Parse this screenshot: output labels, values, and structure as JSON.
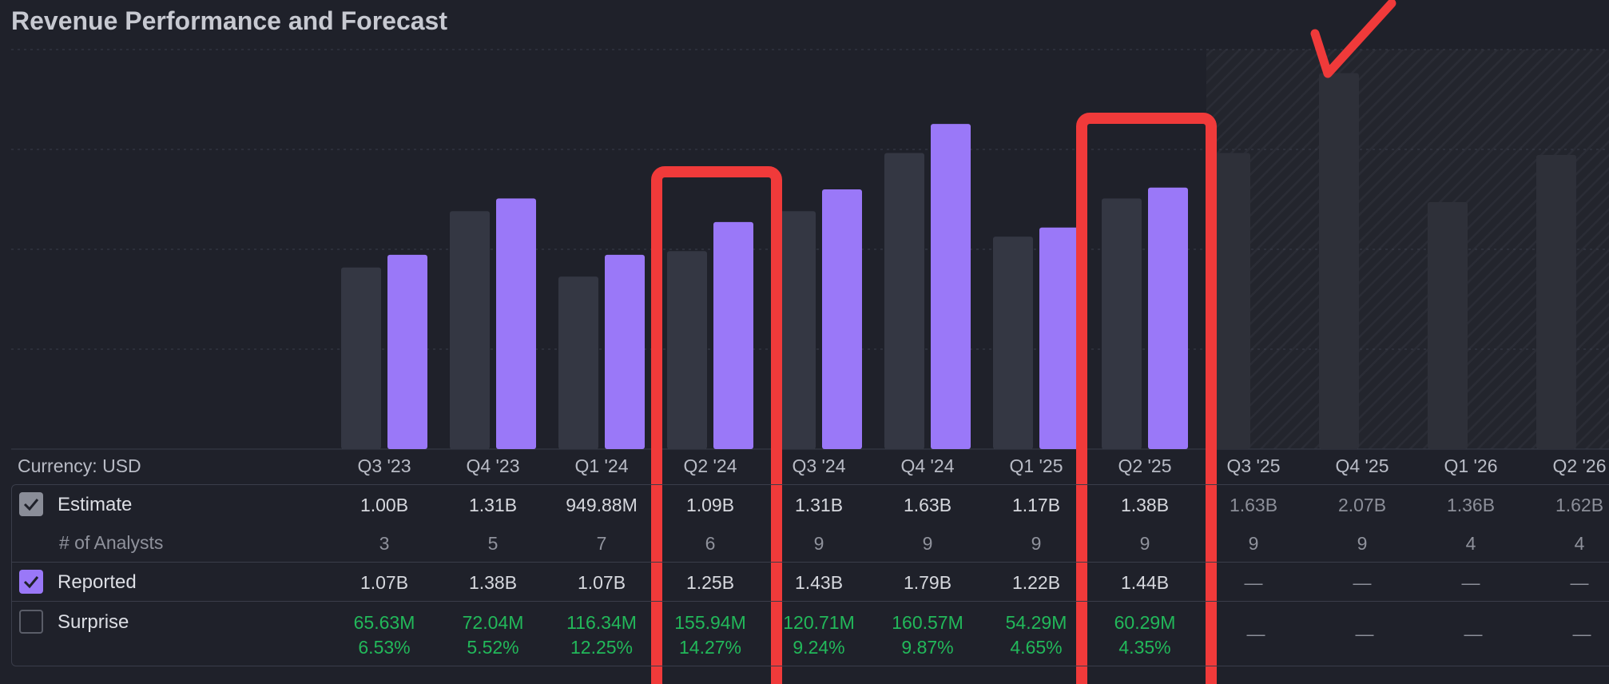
{
  "title": "Revenue Performance and Forecast",
  "currency_label": "Currency: USD",
  "rows": {
    "estimate": "Estimate",
    "analysts": "# of Analysts",
    "reported": "Reported",
    "surprise": "Surprise"
  },
  "colors": {
    "estimate_bar": "#343743",
    "reported_bar": "#9a78f8",
    "forecast_bar": "#2e3039",
    "surprise_text": "#22b85a",
    "annotation": "#f03a3a"
  },
  "quarters": [
    {
      "label": "Q3 '23",
      "estimate": "1.00B",
      "analysts": "3",
      "reported": "1.07B",
      "surprise": "65.63M",
      "surprise_pct": "6.53%",
      "forecast": false
    },
    {
      "label": "Q4 '23",
      "estimate": "1.31B",
      "analysts": "5",
      "reported": "1.38B",
      "surprise": "72.04M",
      "surprise_pct": "5.52%",
      "forecast": false
    },
    {
      "label": "Q1 '24",
      "estimate": "949.88M",
      "analysts": "7",
      "reported": "1.07B",
      "surprise": "116.34M",
      "surprise_pct": "12.25%",
      "forecast": false
    },
    {
      "label": "Q2 '24",
      "estimate": "1.09B",
      "analysts": "6",
      "reported": "1.25B",
      "surprise": "155.94M",
      "surprise_pct": "14.27%",
      "forecast": false
    },
    {
      "label": "Q3 '24",
      "estimate": "1.31B",
      "analysts": "9",
      "reported": "1.43B",
      "surprise": "120.71M",
      "surprise_pct": "9.24%",
      "forecast": false
    },
    {
      "label": "Q4 '24",
      "estimate": "1.63B",
      "analysts": "9",
      "reported": "1.79B",
      "surprise": "160.57M",
      "surprise_pct": "9.87%",
      "forecast": false
    },
    {
      "label": "Q1 '25",
      "estimate": "1.17B",
      "analysts": "9",
      "reported": "1.22B",
      "surprise": "54.29M",
      "surprise_pct": "4.65%",
      "forecast": false
    },
    {
      "label": "Q2 '25",
      "estimate": "1.38B",
      "analysts": "9",
      "reported": "1.44B",
      "surprise": "60.29M",
      "surprise_pct": "4.35%",
      "forecast": false
    },
    {
      "label": "Q3 '25",
      "estimate": "1.63B",
      "analysts": "9",
      "reported": "—",
      "surprise": "—",
      "surprise_pct": "",
      "forecast": true
    },
    {
      "label": "Q4 '25",
      "estimate": "2.07B",
      "analysts": "9",
      "reported": "—",
      "surprise": "—",
      "surprise_pct": "",
      "forecast": true
    },
    {
      "label": "Q1 '26",
      "estimate": "1.36B",
      "analysts": "4",
      "reported": "—",
      "surprise": "—",
      "surprise_pct": "",
      "forecast": true
    },
    {
      "label": "Q2 '26",
      "estimate": "1.62B",
      "analysts": "4",
      "reported": "—",
      "surprise": "—",
      "surprise_pct": "",
      "forecast": true
    }
  ],
  "chart_data": {
    "type": "bar",
    "title": "Revenue Performance and Forecast",
    "categories": [
      "Q3 '23",
      "Q4 '23",
      "Q1 '24",
      "Q2 '24",
      "Q3 '24",
      "Q4 '24",
      "Q1 '25",
      "Q2 '25",
      "Q3 '25",
      "Q4 '25",
      "Q1 '26",
      "Q2 '26"
    ],
    "series": [
      {
        "name": "Estimate",
        "values": [
          1.0,
          1.31,
          0.94988,
          1.09,
          1.31,
          1.63,
          1.17,
          1.38,
          1.63,
          2.07,
          1.36,
          1.62
        ]
      },
      {
        "name": "Reported",
        "values": [
          1.07,
          1.38,
          1.07,
          1.25,
          1.43,
          1.79,
          1.22,
          1.44,
          null,
          null,
          null,
          null
        ]
      }
    ],
    "unit": "B USD",
    "ylim": [
      0,
      2.2
    ],
    "grid": true,
    "forecast_start_category": "Q3 '25"
  }
}
